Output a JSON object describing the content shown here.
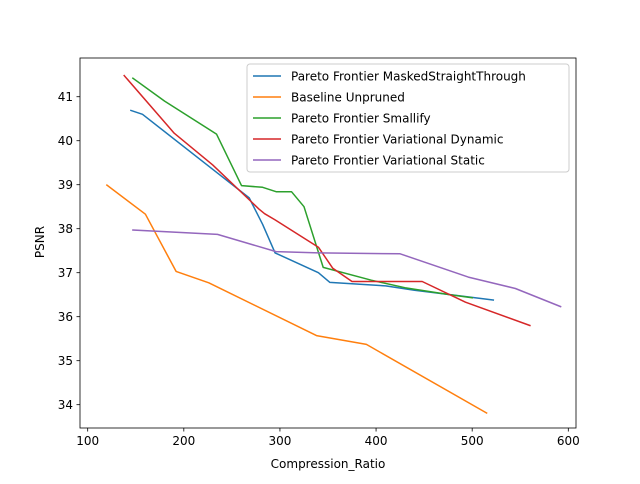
{
  "chart_data": {
    "type": "line",
    "title": "",
    "xlabel": "Compression_Ratio",
    "ylabel": "PSNR",
    "xlim": [
      92,
      608
    ],
    "ylim": [
      33.47,
      41.88
    ],
    "xticks": [
      100,
      200,
      300,
      400,
      500,
      600
    ],
    "yticks": [
      34,
      35,
      36,
      37,
      38,
      39,
      40,
      41
    ],
    "grid": false,
    "legend_position": "top-right",
    "series": [
      {
        "name": "Pareto Frontier MaskedStraightThrough",
        "color": "#1f77b4",
        "points": [
          [
            145,
            40.69
          ],
          [
            157,
            40.6
          ],
          [
            230,
            39.35
          ],
          [
            268,
            38.7
          ],
          [
            282,
            38.1
          ],
          [
            295,
            37.45
          ],
          [
            340,
            37.0
          ],
          [
            352,
            36.78
          ],
          [
            410,
            36.7
          ],
          [
            440,
            36.6
          ],
          [
            478,
            36.5
          ],
          [
            522,
            36.38
          ]
        ]
      },
      {
        "name": "Baseline Unpruned",
        "color": "#ff7f0e",
        "points": [
          [
            120,
            38.99
          ],
          [
            160,
            38.33
          ],
          [
            192,
            37.03
          ],
          [
            226,
            36.77
          ],
          [
            338,
            35.57
          ],
          [
            390,
            35.37
          ],
          [
            515,
            33.81
          ]
        ]
      },
      {
        "name": "Pareto Frontier Smallify",
        "color": "#2ca02c",
        "points": [
          [
            147,
            41.42
          ],
          [
            180,
            40.9
          ],
          [
            234,
            40.15
          ],
          [
            260,
            38.98
          ],
          [
            282,
            38.94
          ],
          [
            296,
            38.84
          ],
          [
            312,
            38.84
          ],
          [
            325,
            38.5
          ],
          [
            345,
            37.12
          ],
          [
            395,
            36.83
          ],
          [
            430,
            36.66
          ],
          [
            477,
            36.5
          ],
          [
            500,
            36.43
          ]
        ]
      },
      {
        "name": "Pareto Frontier Variational Dynamic",
        "color": "#d62728",
        "points": [
          [
            138,
            41.48
          ],
          [
            190,
            40.17
          ],
          [
            230,
            39.45
          ],
          [
            278,
            38.45
          ],
          [
            284,
            38.34
          ],
          [
            295,
            38.2
          ],
          [
            340,
            37.58
          ],
          [
            355,
            37.1
          ],
          [
            375,
            36.8
          ],
          [
            448,
            36.8
          ],
          [
            493,
            36.33
          ],
          [
            560,
            35.8
          ]
        ]
      },
      {
        "name": "Pareto Frontier Variational Static",
        "color": "#9467bd",
        "points": [
          [
            147,
            37.97
          ],
          [
            235,
            37.87
          ],
          [
            296,
            37.48
          ],
          [
            340,
            37.45
          ],
          [
            425,
            37.43
          ],
          [
            496,
            36.9
          ],
          [
            545,
            36.64
          ],
          [
            592,
            36.23
          ]
        ]
      }
    ]
  }
}
